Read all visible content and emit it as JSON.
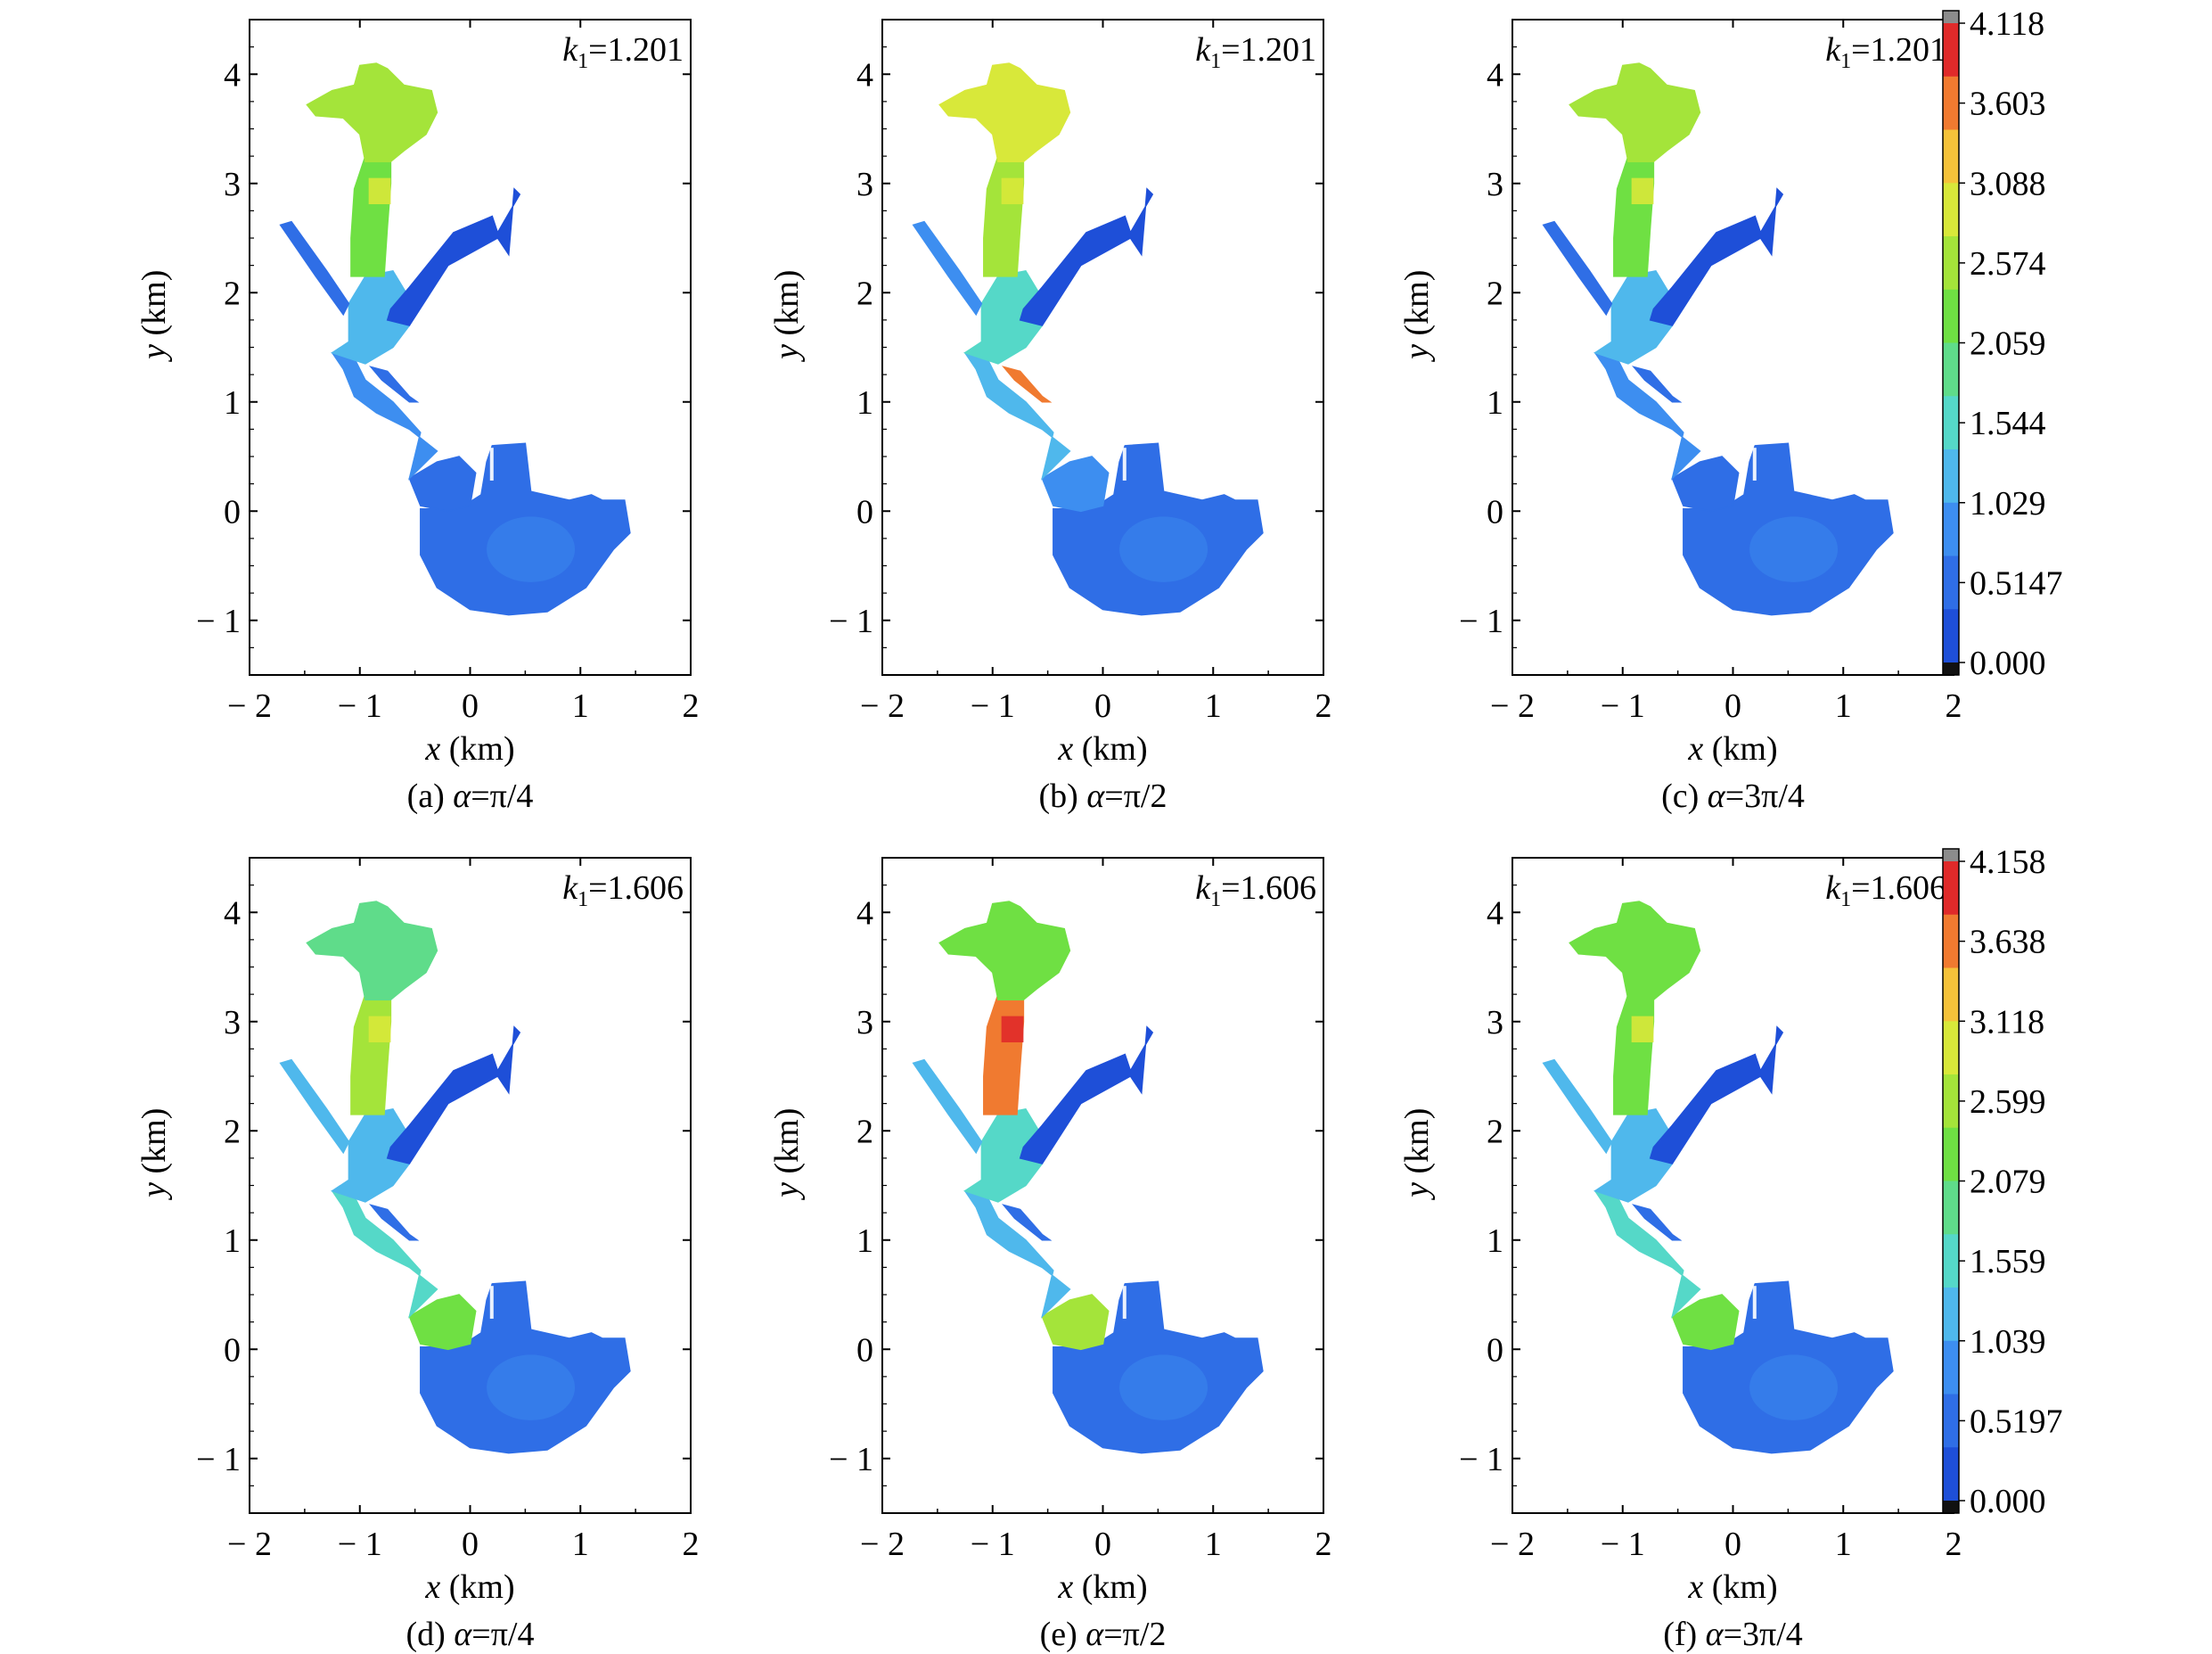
{
  "colors": {
    "scale": [
      "#1e4fd8",
      "#2f6ee6",
      "#3d8ef0",
      "#4fb8ec",
      "#55d8c8",
      "#5fdc8a",
      "#6fe043",
      "#a4e43a",
      "#d8e83a",
      "#f5c23a",
      "#f07a30",
      "#e02a2a"
    ],
    "colorbar_top": "#8c8c8c",
    "colorbar_bottom": "#111111",
    "frame": "#000000"
  },
  "chart_data": [
    {
      "type": "heatmap",
      "id": "a",
      "caption_prefix": "(a) ",
      "caption_var": "α",
      "caption_value": "=π/4",
      "k_var": "k",
      "k_sub": "1",
      "k_value": "=1.201",
      "xlabel_var": "x",
      "xlabel_unit": " (km)",
      "ylabel_var": "y",
      "ylabel_unit": " (km)",
      "xlim": [
        -2,
        2
      ],
      "ylim": [
        -1.5,
        4.5
      ],
      "xticks": [
        "− 2",
        "− 1",
        "0",
        "1",
        "2"
      ],
      "yticks": [
        "− 1",
        "0",
        "1",
        "2",
        "3",
        "4"
      ],
      "levels": {
        "north": 0.62,
        "branch": 0.58,
        "throat": 0.3,
        "neck": 0.2,
        "west": 0.1,
        "south": 0.12,
        "basin": 0.08,
        "ne": 0.03,
        "spot": 0.05
      }
    },
    {
      "type": "heatmap",
      "id": "b",
      "caption_prefix": "(b) ",
      "caption_var": "α",
      "caption_value": "=π/2",
      "k_var": "k",
      "k_sub": "1",
      "k_value": "=1.201",
      "xlabel_var": "x",
      "xlabel_unit": " (km)",
      "ylabel_var": "y",
      "ylabel_unit": " (km)",
      "xlim": [
        -2,
        2
      ],
      "ylim": [
        -1.5,
        4.5
      ],
      "xticks": [
        "− 2",
        "− 1",
        "0",
        "1",
        "2"
      ],
      "yticks": [
        "− 1",
        "0",
        "1",
        "2",
        "3",
        "4"
      ],
      "levels": {
        "north": 0.75,
        "branch": 0.62,
        "throat": 0.35,
        "neck": 0.28,
        "west": 0.22,
        "south": 0.18,
        "basin": 0.1,
        "ne": 0.04,
        "spot": 0.95
      }
    },
    {
      "type": "heatmap",
      "id": "c",
      "caption_prefix": "(c) ",
      "caption_var": "α",
      "caption_value": "=3π/4",
      "k_var": "k",
      "k_sub": "1",
      "k_value": "=1.201",
      "xlabel_var": "x",
      "xlabel_unit": " (km)",
      "ylabel_var": "y",
      "ylabel_unit": " (km)",
      "xlim": [
        -2,
        2
      ],
      "ylim": [
        -1.5,
        4.5
      ],
      "xticks": [
        "− 2",
        "− 1",
        "0",
        "1",
        "2"
      ],
      "yticks": [
        "− 1",
        "0",
        "1",
        "2",
        "3",
        "4"
      ],
      "levels": {
        "north": 0.6,
        "branch": 0.56,
        "throat": 0.28,
        "neck": 0.2,
        "west": 0.12,
        "south": 0.12,
        "basin": 0.08,
        "ne": 0.03,
        "spot": 0.05
      }
    },
    {
      "type": "heatmap",
      "id": "d",
      "caption_prefix": "(d) ",
      "caption_var": "α",
      "caption_value": "=π/4",
      "k_var": "k",
      "k_sub": "1",
      "k_value": "=1.606",
      "xlabel_var": "x",
      "xlabel_unit": " (km)",
      "ylabel_var": "y",
      "ylabel_unit": " (km)",
      "xlim": [
        -2,
        2
      ],
      "ylim": [
        -1.5,
        4.5
      ],
      "xticks": [
        "− 2",
        "− 1",
        "0",
        "1",
        "2"
      ],
      "yticks": [
        "− 1",
        "0",
        "1",
        "2",
        "3",
        "4"
      ],
      "levels": {
        "north": 0.45,
        "branch": 0.6,
        "throat": 0.3,
        "neck": 0.38,
        "west": 0.3,
        "south": 0.5,
        "basin": 0.1,
        "ne": 0.04,
        "spot": 0.05
      }
    },
    {
      "type": "heatmap",
      "id": "e",
      "caption_prefix": "(e) ",
      "caption_var": "α",
      "caption_value": "=π/2",
      "k_var": "k",
      "k_sub": "1",
      "k_value": "=1.606",
      "xlabel_var": "x",
      "xlabel_unit": " (km)",
      "ylabel_var": "y",
      "ylabel_unit": " (km)",
      "xlim": [
        -2,
        2
      ],
      "ylim": [
        -1.5,
        4.5
      ],
      "xticks": [
        "− 2",
        "− 1",
        "0",
        "1",
        "2"
      ],
      "yticks": [
        "− 1",
        "0",
        "1",
        "2",
        "3",
        "4"
      ],
      "levels": {
        "north": 0.58,
        "branch": 0.95,
        "throat": 0.35,
        "neck": 0.3,
        "west": 0.3,
        "south": 0.65,
        "basin": 0.1,
        "ne": 0.04,
        "spot": 0.05
      }
    },
    {
      "type": "heatmap",
      "id": "f",
      "caption_prefix": "(f) ",
      "caption_var": "α",
      "caption_value": "=3π/4",
      "k_var": "k",
      "k_sub": "1",
      "k_value": "=1.606",
      "xlabel_var": "x",
      "xlabel_unit": " (km)",
      "ylabel_var": "y",
      "ylabel_unit": " (km)",
      "xlim": [
        -2,
        2
      ],
      "ylim": [
        -1.5,
        4.5
      ],
      "xticks": [
        "− 2",
        "− 1",
        "0",
        "1",
        "2"
      ],
      "yticks": [
        "− 1",
        "0",
        "1",
        "2",
        "3",
        "4"
      ],
      "levels": {
        "north": 0.55,
        "branch": 0.58,
        "throat": 0.3,
        "neck": 0.35,
        "west": 0.28,
        "south": 0.55,
        "basin": 0.1,
        "ne": 0.04,
        "spot": 0.05
      }
    }
  ],
  "colorbars": [
    {
      "id": "top",
      "labels": [
        "4.118",
        "3.603",
        "3.088",
        "2.574",
        "2.059",
        "1.544",
        "1.029",
        "0.5147",
        "0.000"
      ]
    },
    {
      "id": "bottom",
      "labels": [
        "4.158",
        "3.638",
        "3.118",
        "2.599",
        "2.079",
        "1.559",
        "1.039",
        "0.5197",
        "0.000"
      ]
    }
  ]
}
